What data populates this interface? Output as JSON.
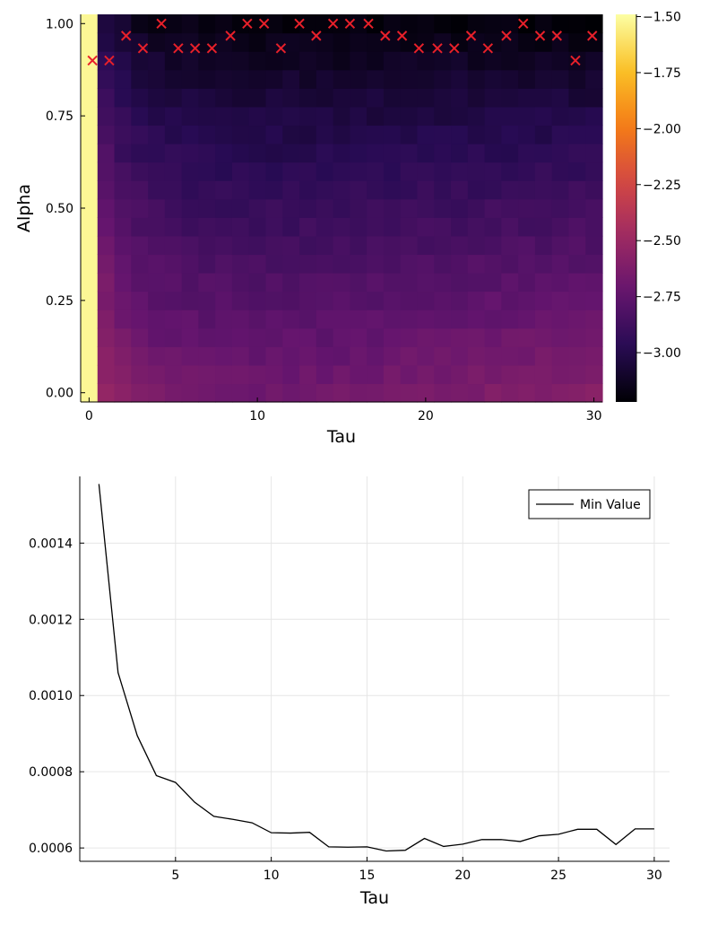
{
  "chart_data": [
    {
      "type": "heatmap",
      "title": "",
      "xlabel": "Tau",
      "ylabel": "Alpha",
      "xlim": [
        0,
        30
      ],
      "ylim": [
        0,
        1
      ],
      "x_ticks": [
        0,
        10,
        20,
        30
      ],
      "x_tick_labels": [
        "0",
        "10",
        "20",
        "30"
      ],
      "y_ticks": [
        0,
        0.25,
        0.5,
        0.75,
        1.0
      ],
      "y_tick_labels": [
        "0.00",
        "0.25",
        "0.50",
        "0.75",
        "1.00"
      ],
      "colormap": "inferno",
      "colorbar": {
        "range": [
          -3.22,
          -1.49
        ],
        "ticks": [
          -1.5,
          -1.75,
          -2.0,
          -2.25,
          -2.5,
          -2.75,
          -3.0
        ],
        "tick_labels": [
          "−1.50",
          "−1.75",
          "−2.00",
          "−2.25",
          "−2.50",
          "−2.75",
          "−3.00"
        ]
      },
      "grid": {
        "n_tau": 31,
        "n_alpha": 21,
        "tau_min": 0,
        "tau_max": 30,
        "alpha_min": 0,
        "alpha_max": 1
      },
      "minima_marker": "X",
      "minima_marker_color": "#e8202a",
      "minima_alpha": [
        0.9,
        0.9,
        0.967,
        0.933,
        1.0,
        0.933,
        0.933,
        0.933,
        0.967,
        1.0,
        1.0,
        0.933,
        1.0,
        0.967,
        1.0,
        1.0,
        1.0,
        0.967,
        0.967,
        0.933,
        0.933,
        0.933,
        0.967,
        0.933,
        0.967,
        1.0,
        0.967,
        0.967,
        0.9,
        0.967
      ],
      "minima_tau": [
        0.2,
        1.2,
        2.2,
        3.2,
        4.3,
        5.3,
        6.3,
        7.3,
        8.4,
        9.4,
        10.4,
        11.4,
        12.5,
        13.5,
        14.5,
        15.5,
        16.6,
        17.6,
        18.6,
        19.6,
        20.7,
        21.7,
        22.7,
        23.7,
        24.8,
        25.8,
        26.8,
        27.8,
        28.9,
        29.9
      ]
    },
    {
      "type": "line",
      "title": "",
      "xlabel": "Tau",
      "ylabel": "",
      "xlim": [
        0.0,
        30.8
      ],
      "ylim": [
        0.000565,
        0.001575
      ],
      "x_ticks": [
        5,
        10,
        15,
        20,
        25,
        30
      ],
      "x_tick_labels": [
        "5",
        "10",
        "15",
        "20",
        "25",
        "30"
      ],
      "y_ticks": [
        0.0006,
        0.0008,
        0.001,
        0.0012,
        0.0014
      ],
      "y_tick_labels": [
        "0.0006",
        "0.0008",
        "0.0010",
        "0.0012",
        "0.0014"
      ],
      "grid": true,
      "legend": "top-right",
      "series": [
        {
          "name": "Min Value",
          "color": "#000000",
          "x": [
            1,
            2,
            3,
            4,
            5,
            6,
            7,
            8,
            9,
            10,
            11,
            12,
            13,
            14,
            15,
            16,
            17,
            18,
            19,
            20,
            21,
            22,
            23,
            24,
            25,
            26,
            27,
            28,
            29,
            30
          ],
          "y": [
            0.001555,
            0.00106,
            0.000895,
            0.00079,
            0.000772,
            0.00072,
            0.000683,
            0.000675,
            0.000666,
            0.00064,
            0.000639,
            0.000641,
            0.000603,
            0.000602,
            0.000603,
            0.000592,
            0.000594,
            0.000625,
            0.000604,
            0.00061,
            0.000622,
            0.000622,
            0.000617,
            0.000632,
            0.000636,
            0.000649,
            0.000649,
            0.000609,
            0.00065,
            0.00065
          ]
        }
      ]
    }
  ]
}
